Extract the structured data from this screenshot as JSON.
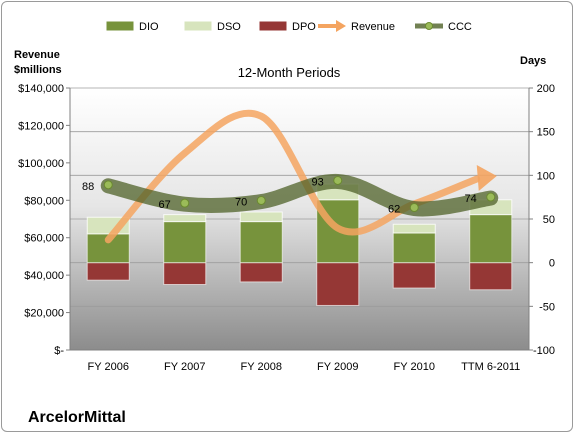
{
  "chart_data": {
    "type": "bar",
    "title": "12-Month Periods",
    "company": "ArcelorMittal",
    "left_axis_label": [
      "Revenue",
      "$millions"
    ],
    "right_axis_label": "Days",
    "categories": [
      "FY 2006",
      "FY 2007",
      "FY 2008",
      "FY 2009",
      "FY 2010",
      "TTM 6-2011"
    ],
    "left_axis": {
      "min": 0,
      "max": 140000,
      "step": 20000,
      "tick_labels": [
        "$-",
        "$20,000",
        "$40,000",
        "$60,000",
        "$80,000",
        "$100,000",
        "$120,000",
        "$140,000"
      ]
    },
    "right_axis": {
      "min": -100,
      "max": 200,
      "step": 50,
      "tick_labels": [
        "-100",
        "-50",
        "0",
        "50",
        "100",
        "150",
        "200"
      ]
    },
    "legend_position": "top",
    "legend": [
      {
        "name": "DIO",
        "swatch": "bar",
        "color": "#77933c"
      },
      {
        "name": "DSO",
        "swatch": "bar",
        "color": "#d7e4bd"
      },
      {
        "name": "DPO",
        "swatch": "bar",
        "color": "#953735"
      },
      {
        "name": "Revenue",
        "swatch": "arrow",
        "color": "#f4a460"
      },
      {
        "name": "CCC",
        "swatch": "line-dot",
        "color": "#4f6228"
      }
    ],
    "series": [
      {
        "name": "DIO",
        "axis": "right",
        "values": [
          33,
          47,
          47,
          72,
          34,
          55
        ]
      },
      {
        "name": "DSO",
        "axis": "right",
        "values": [
          19,
          8,
          11,
          18,
          10,
          17
        ]
      },
      {
        "name": "DPO",
        "axis": "right",
        "values": [
          -20,
          -25,
          -22,
          -49,
          -29,
          -31
        ]
      },
      {
        "name": "Revenue",
        "axis": "left",
        "values": [
          58870,
          105216,
          124936,
          65110,
          78025,
          93000
        ]
      },
      {
        "name": "CCC",
        "axis": "right",
        "values": [
          88,
          67,
          70,
          93,
          62,
          74
        ]
      }
    ],
    "ccc_labels": [
      "88",
      "67",
      "70",
      "93",
      "62",
      "74"
    ],
    "colors": {
      "dio": "#77933c",
      "dio_dark": "#4f6228",
      "dso": "#d7e4bd",
      "dpo": "#953735",
      "revenue": "#f4a460",
      "ccc": "#4f6228",
      "plot_top": "#ffffff",
      "plot_bottom": "#8c8c8c"
    },
    "grid": true
  }
}
